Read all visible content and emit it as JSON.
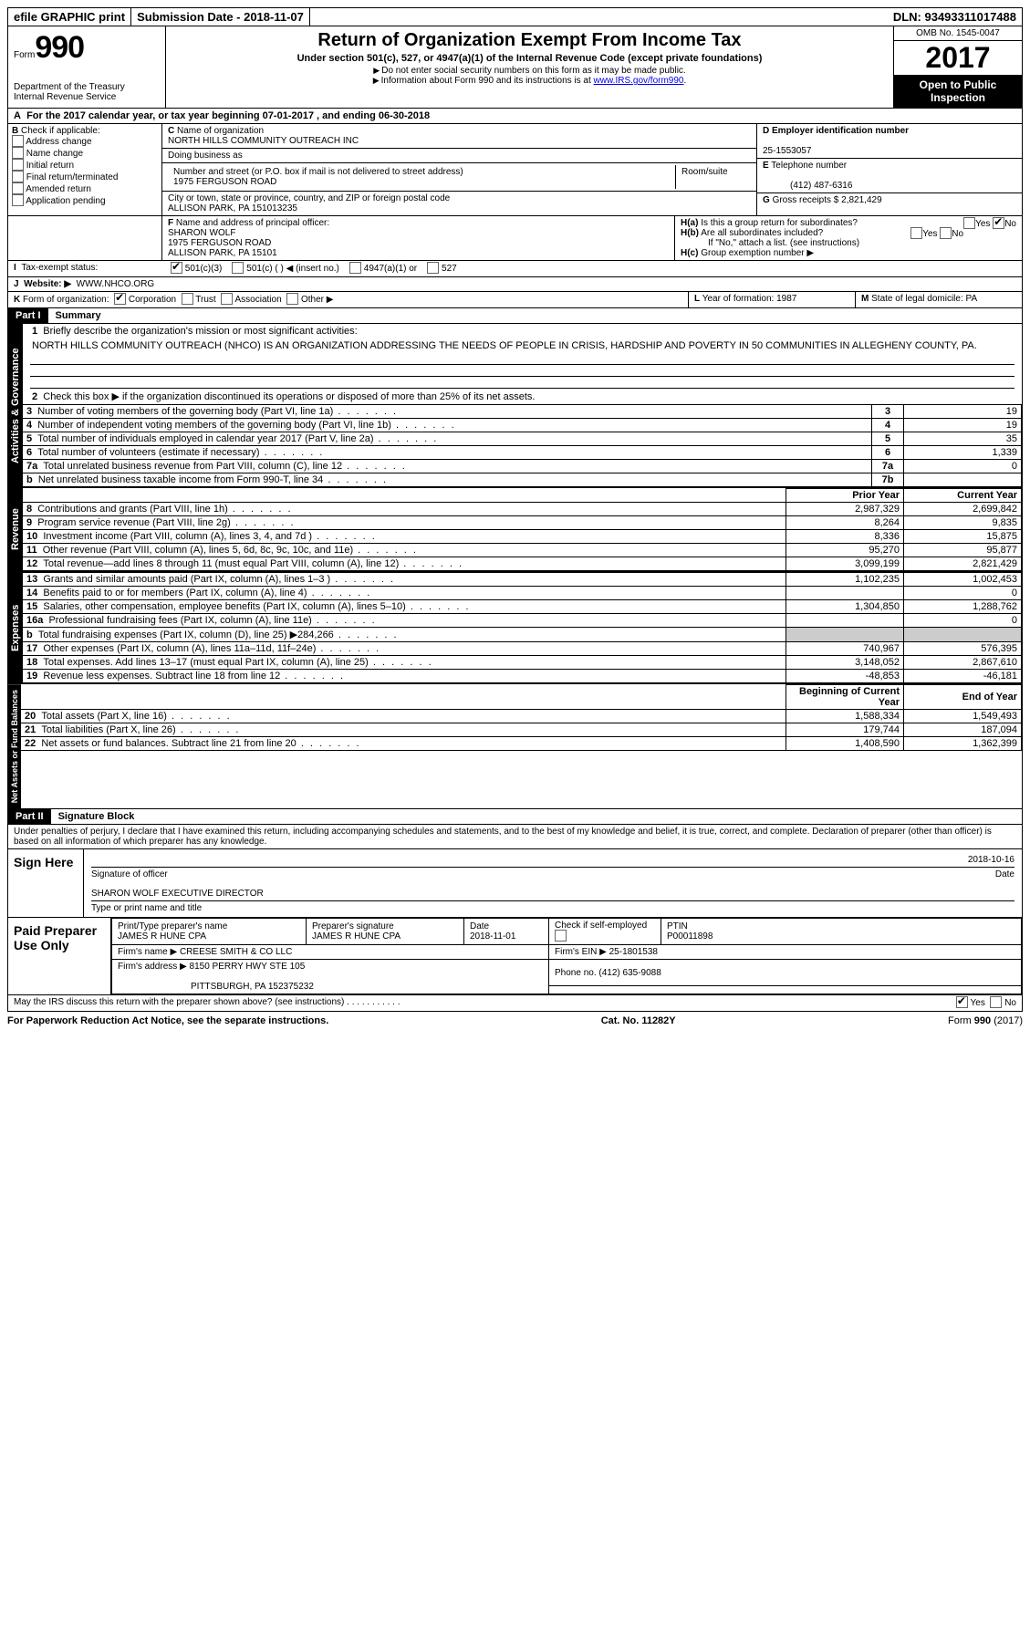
{
  "top": {
    "efile": "efile GRAPHIC print",
    "submission": "Submission Date - 2018-11-07",
    "dln": "DLN: 93493311017488"
  },
  "header": {
    "form_prefix": "Form",
    "form_no": "990",
    "dept1": "Department of the Treasury",
    "dept2": "Internal Revenue Service",
    "title": "Return of Organization Exempt From Income Tax",
    "sub": "Under section 501(c), 527, or 4947(a)(1) of the Internal Revenue Code (except private foundations)",
    "note1": "Do not enter social security numbers on this form as it may be made public.",
    "note2_pre": "Information about Form 990 and its instructions is at ",
    "note2_link": "www.IRS.gov/form990",
    "omb": "OMB No. 1545-0047",
    "year": "2017",
    "open1": "Open to Public",
    "open2": "Inspection"
  },
  "A": {
    "text_pre": "For the 2017 calendar year, or tax year beginning ",
    "begin": "07-01-2017",
    "mid": " , and ending ",
    "end": "06-30-2018"
  },
  "B": {
    "lead": "Check if applicable:",
    "opts": [
      "Address change",
      "Name change",
      "Initial return",
      "Final return/terminated",
      "Amended return",
      "Application pending"
    ]
  },
  "C": {
    "label": "Name of organization",
    "name": "NORTH HILLS COMMUNITY OUTREACH INC",
    "dba": "Doing business as",
    "street_label": "Number and street (or P.O. box if mail is not delivered to street address)",
    "room": "Room/suite",
    "street": "1975 FERGUSON ROAD",
    "city_label": "City or town, state or province, country, and ZIP or foreign postal code",
    "city": "ALLISON PARK, PA  151013235"
  },
  "D": {
    "label": "Employer identification number",
    "val": "25-1553057"
  },
  "E": {
    "label": "Telephone number",
    "val": "(412) 487-6316"
  },
  "G": {
    "label": "Gross receipts $",
    "val": "2,821,429"
  },
  "F": {
    "label": "Name and address of principal officer:",
    "name": "SHARON WOLF",
    "addr1": "1975 FERGUSON ROAD",
    "addr2": "ALLISON PARK, PA  15101"
  },
  "H": {
    "a": "Is this a group return for subordinates?",
    "b": "Are all subordinates included?",
    "note": "If \"No,\" attach a list. (see instructions)",
    "c": "Group exemption number ▶",
    "yes": "Yes",
    "no": "No"
  },
  "I": {
    "label": "Tax-exempt status:",
    "o1": "501(c)(3)",
    "o2": "501(c) (  ) ◀ (insert no.)",
    "o3": "4947(a)(1) or",
    "o4": "527"
  },
  "J": {
    "label": "Website: ▶",
    "val": "WWW.NHCO.ORG"
  },
  "K": {
    "label": "Form of organization:",
    "o1": "Corporation",
    "o2": "Trust",
    "o3": "Association",
    "o4": "Other ▶"
  },
  "L": {
    "label": "Year of formation:",
    "val": "1987"
  },
  "M": {
    "label": "State of legal domicile:",
    "val": "PA"
  },
  "part1": {
    "hdr": "Part I",
    "title": "Summary"
  },
  "gov": {
    "tab": "Activities & Governance",
    "l1": "Briefly describe the organization's mission or most significant activities:",
    "mission": "NORTH HILLS COMMUNITY OUTREACH (NHCO) IS AN ORGANIZATION ADDRESSING THE NEEDS OF PEOPLE IN CRISIS, HARDSHIP AND POVERTY IN 50 COMMUNITIES IN ALLEGHENY COUNTY, PA.",
    "l2": "Check this box ▶          if the organization discontinued its operations or disposed of more than 25% of its net assets.",
    "lines": [
      {
        "n": "3",
        "t": "Number of voting members of the governing body (Part VI, line 1a)",
        "box": "3",
        "v": "19"
      },
      {
        "n": "4",
        "t": "Number of independent voting members of the governing body (Part VI, line 1b)",
        "box": "4",
        "v": "19"
      },
      {
        "n": "5",
        "t": "Total number of individuals employed in calendar year 2017 (Part V, line 2a)",
        "box": "5",
        "v": "35"
      },
      {
        "n": "6",
        "t": "Total number of volunteers (estimate if necessary)",
        "box": "6",
        "v": "1,339"
      },
      {
        "n": "7a",
        "t": "Total unrelated business revenue from Part VIII, column (C), line 12",
        "box": "7a",
        "v": "0"
      },
      {
        "n": "b",
        "t": "Net unrelated business taxable income from Form 990-T, line 34",
        "box": "7b",
        "v": ""
      }
    ]
  },
  "cols": {
    "prior": "Prior Year",
    "current": "Current Year",
    "boy": "Beginning of Current Year",
    "eoy": "End of Year"
  },
  "rev": {
    "tab": "Revenue",
    "rows": [
      {
        "n": "8",
        "t": "Contributions and grants (Part VIII, line 1h)",
        "p": "2,987,329",
        "c": "2,699,842"
      },
      {
        "n": "9",
        "t": "Program service revenue (Part VIII, line 2g)",
        "p": "8,264",
        "c": "9,835"
      },
      {
        "n": "10",
        "t": "Investment income (Part VIII, column (A), lines 3, 4, and 7d )",
        "p": "8,336",
        "c": "15,875"
      },
      {
        "n": "11",
        "t": "Other revenue (Part VIII, column (A), lines 5, 6d, 8c, 9c, 10c, and 11e)",
        "p": "95,270",
        "c": "95,877"
      },
      {
        "n": "12",
        "t": "Total revenue—add lines 8 through 11 (must equal Part VIII, column (A), line 12)",
        "p": "3,099,199",
        "c": "2,821,429"
      }
    ]
  },
  "exp": {
    "tab": "Expenses",
    "rows": [
      {
        "n": "13",
        "t": "Grants and similar amounts paid (Part IX, column (A), lines 1–3 )",
        "p": "1,102,235",
        "c": "1,002,453"
      },
      {
        "n": "14",
        "t": "Benefits paid to or for members (Part IX, column (A), line 4)",
        "p": "",
        "c": "0"
      },
      {
        "n": "15",
        "t": "Salaries, other compensation, employee benefits (Part IX, column (A), lines 5–10)",
        "p": "1,304,850",
        "c": "1,288,762"
      },
      {
        "n": "16a",
        "t": "Professional fundraising fees (Part IX, column (A), line 11e)",
        "p": "",
        "c": "0"
      },
      {
        "n": "b",
        "t": "Total fundraising expenses (Part IX, column (D), line 25) ▶284,266",
        "p": "SHADE",
        "c": "SHADE"
      },
      {
        "n": "17",
        "t": "Other expenses (Part IX, column (A), lines 11a–11d, 11f–24e)",
        "p": "740,967",
        "c": "576,395"
      },
      {
        "n": "18",
        "t": "Total expenses. Add lines 13–17 (must equal Part IX, column (A), line 25)",
        "p": "3,148,052",
        "c": "2,867,610"
      },
      {
        "n": "19",
        "t": "Revenue less expenses. Subtract line 18 from line 12",
        "p": "-48,853",
        "c": "-46,181"
      }
    ]
  },
  "net": {
    "tab": "Net Assets or Fund Balances",
    "rows": [
      {
        "n": "20",
        "t": "Total assets (Part X, line 16)",
        "p": "1,588,334",
        "c": "1,549,493"
      },
      {
        "n": "21",
        "t": "Total liabilities (Part X, line 26)",
        "p": "179,744",
        "c": "187,094"
      },
      {
        "n": "22",
        "t": "Net assets or fund balances. Subtract line 21 from line 20",
        "p": "1,408,590",
        "c": "1,362,399"
      }
    ]
  },
  "part2": {
    "hdr": "Part II",
    "title": "Signature Block"
  },
  "sig": {
    "decl": "Under penalties of perjury, I declare that I have examined this return, including accompanying schedules and statements, and to the best of my knowledge and belief, it is true, correct, and complete. Declaration of preparer (other than officer) is based on all information of which preparer has any knowledge.",
    "sign_here": "Sign Here",
    "sig_officer": "Signature of officer",
    "date": "Date",
    "date_val": "2018-10-16",
    "name_title": "SHARON WOLF  EXECUTIVE DIRECTOR",
    "name_lbl": "Type or print name and title"
  },
  "prep": {
    "side": "Paid Preparer Use Only",
    "ppname_lbl": "Print/Type preparer's name",
    "ppname": "JAMES R HUNE CPA",
    "ppsig_lbl": "Preparer's signature",
    "ppsig": "JAMES R HUNE CPA",
    "pdate_lbl": "Date",
    "pdate": "2018-11-01",
    "self_lbl": "Check         if self-employed",
    "ptin_lbl": "PTIN",
    "ptin": "P00011898",
    "firm_lbl": "Firm's name    ▶",
    "firm": "CREESE SMITH & CO LLC",
    "fein_lbl": "Firm's EIN ▶",
    "fein": "25-1801538",
    "faddr_lbl": "Firm's address ▶",
    "faddr1": "8150 PERRY HWY STE 105",
    "faddr2": "PITTSBURGH, PA  152375232",
    "phone_lbl": "Phone no.",
    "phone": "(412) 635-9088"
  },
  "discuss": {
    "q": "May the IRS discuss this return with the preparer shown above? (see instructions)",
    "yes": "Yes",
    "no": "No"
  },
  "footer": {
    "pra": "For Paperwork Reduction Act Notice, see the separate instructions.",
    "cat": "Cat. No. 11282Y",
    "form": "Form 990 (2017)"
  }
}
